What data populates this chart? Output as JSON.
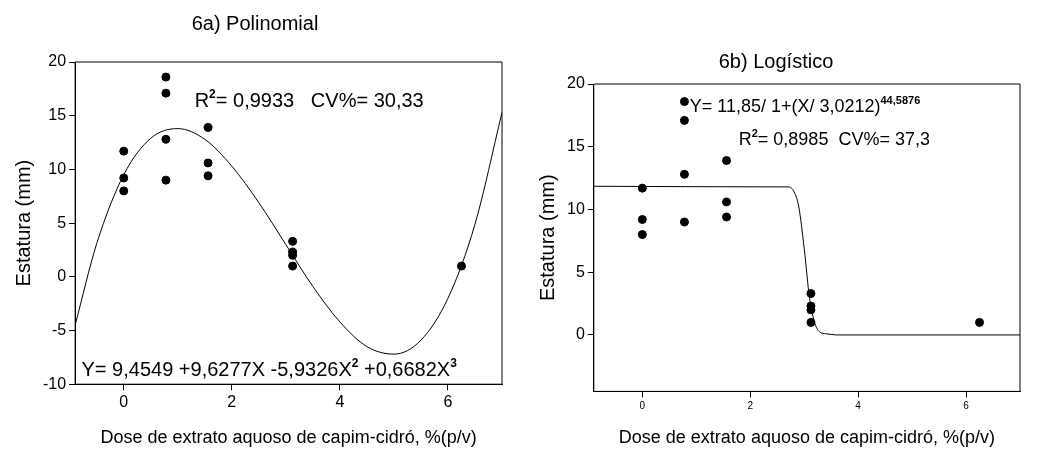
{
  "chart_data": [
    {
      "type": "scatter",
      "title": "6a) Polinomial",
      "xlabel": "Dose de extrato aquoso de capim-cidró, %(p/v)",
      "ylabel": "Estatura (mm)",
      "xlim": [
        -0.9,
        7
      ],
      "xticks": [
        0,
        2,
        4,
        6
      ],
      "ylim": [
        -10,
        20
      ],
      "yticks": [
        -10,
        -5,
        0,
        5,
        10,
        15,
        20
      ],
      "grid": false,
      "legend": false,
      "annotations": [
        "R$^{2}$= 0,9933   CV%= 30,33",
        "Y= 9,4549 +9,6277X -5,9326X$^{2}$ +0,6682X$^{3}$"
      ],
      "series": [
        {
          "color": "#000000",
          "marker": "circle",
          "x": [
            0,
            0,
            0,
            0.78,
            0.78,
            0.78,
            0.78,
            1.56,
            1.56,
            1.56,
            3.125,
            3.125,
            3.125,
            3.125,
            6.25
          ],
          "values": [
            11.7,
            9.2,
            8.0,
            18.6,
            17.1,
            12.8,
            9.0,
            13.9,
            10.6,
            9.4,
            3.3,
            2.3,
            2.0,
            1.0,
            1.0
          ]
        },
        {
          "type": "line",
          "color": "#000000",
          "marker": "none",
          "x": [
            -0.9,
            -0.5,
            0,
            0.5,
            1,
            1.5,
            2,
            2.5,
            3,
            3.5,
            4,
            4.5,
            5,
            5.5,
            6,
            6.5,
            7
          ],
          "values": [
            -4.5,
            3.1,
            9.5,
            12.9,
            13.8,
            12.8,
            10.3,
            6.9,
            3.0,
            -0.9,
            -4.2,
            -6.5,
            -7.2,
            -5.9,
            -2.0,
            4.9,
            15.3
          ]
        }
      ]
    },
    {
      "type": "scatter",
      "title": "6b) Logístico",
      "xlabel": "Dose de extrato aquoso de capim-cidró, %(p/v)",
      "ylabel": "Estatura (mm)",
      "xlim": [
        -0.9,
        7
      ],
      "xticks": [
        0,
        2,
        4,
        6
      ],
      "ylim": [
        -4.5,
        20
      ],
      "yticks": [
        0,
        5,
        10,
        15,
        20
      ],
      "grid": false,
      "legend": false,
      "annotations": [
        "Y= 11,85/ 1+(X/ 3,0212)$^{44,5876}$",
        "R$^{2}$= 0,8985  CV%= 37,3"
      ],
      "series": [
        {
          "color": "#000000",
          "marker": "circle",
          "x": [
            0,
            0,
            0,
            0.78,
            0.78,
            0.78,
            0.78,
            1.56,
            1.56,
            1.56,
            3.125,
            3.125,
            3.125,
            3.125,
            6.25
          ],
          "values": [
            11.7,
            9.2,
            8.0,
            18.6,
            17.1,
            12.8,
            9.0,
            13.9,
            10.6,
            9.4,
            3.3,
            2.3,
            2.0,
            1.0,
            1.0
          ]
        },
        {
          "type": "line",
          "color": "#000000",
          "marker": "none",
          "x": [
            -0.9,
            2.5,
            2.7,
            2.8,
            2.9,
            3.0,
            3.1,
            3.2,
            3.3,
            3.4,
            3.6,
            7
          ],
          "values": [
            11.85,
            11.8,
            11.8,
            11.5,
            10.2,
            6.9,
            2.9,
            0.9,
            0.2,
            0.1,
            0,
            0
          ]
        }
      ]
    }
  ]
}
